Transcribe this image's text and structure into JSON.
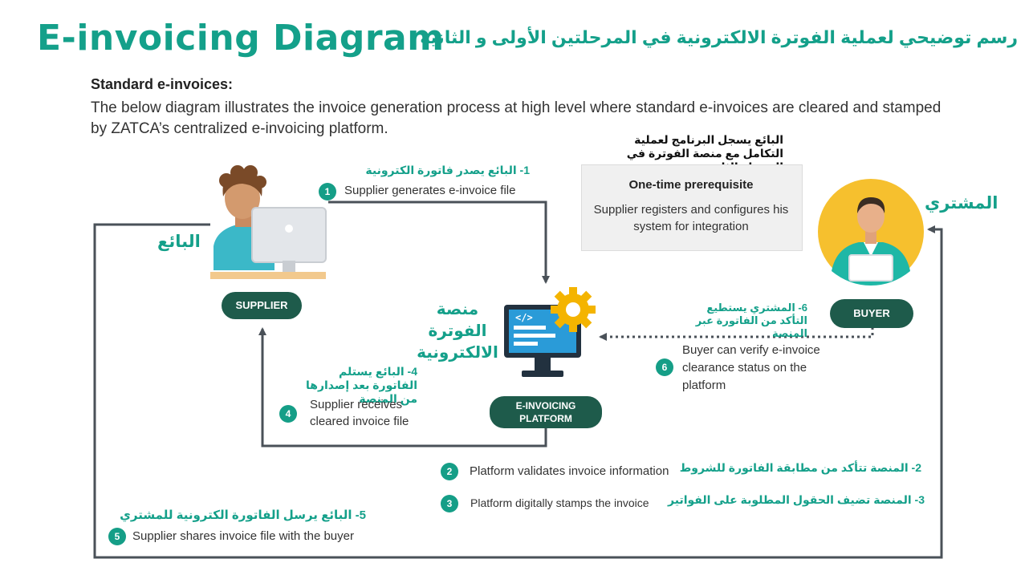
{
  "header": {
    "title": "E-invoicing Diagram",
    "arabic_title": "رسم توضيحي لعملية الفوترة الالكترونية في المرحلتين الأولى و الثانية"
  },
  "section": {
    "heading": "Standard e-invoices:",
    "description": "The below diagram illustrates the invoice generation process at high level where standard e-invoices are cleared and stamped by ZATCA’s centralized e-invoicing platform."
  },
  "prerequisite": {
    "arabic_note": "البائع يسجل البرنامج لعملية التكامل مع منصة الفوترة في المرحلة الثانية",
    "title": "One-time prerequisite",
    "body": "Supplier registers and configures his system for integration"
  },
  "actors": {
    "supplier": {
      "label": "SUPPLIER",
      "arabic": "البائع"
    },
    "buyer": {
      "label": "BUYER",
      "arabic": "المشتري"
    },
    "platform": {
      "label": "E-INVOICING PLATFORM",
      "arabic": "منصة الفوترة الالكترونية"
    }
  },
  "steps": [
    {
      "number": "1",
      "arabic": "1- البائع يصدر فاتورة الكترونية",
      "text": "Supplier generates e-invoice file"
    },
    {
      "number": "2",
      "arabic": "2-  المنصة تتأكد من مطابقة الفاتورة للشروط",
      "text": "Platform validates invoice information"
    },
    {
      "number": "3",
      "arabic": "3- المنصة تضيف الحقول المطلوبة على الفواتير",
      "text": "Platform digitally stamps the invoice"
    },
    {
      "number": "4",
      "arabic": "4- البائع يستلم الفاتورة بعد إصدارها من المنصة",
      "text": "Supplier receives cleared invoice file"
    },
    {
      "number": "5",
      "arabic": "5- البائع يرسل الفاتورة الكترونية للمشتري",
      "text": "Supplier shares invoice file with the buyer"
    },
    {
      "number": "6",
      "arabic": "6- المشتري يستطيع التأكد من الفاتورة عبر المنصة",
      "text": "Buyer can verify e-invoice clearance status on the platform"
    }
  ],
  "colors": {
    "brand_teal": "#14a08a",
    "pill_green": "#1e5b4b",
    "arrow_gray": "#4a5158",
    "buyer_circle": "#f6c02e"
  }
}
